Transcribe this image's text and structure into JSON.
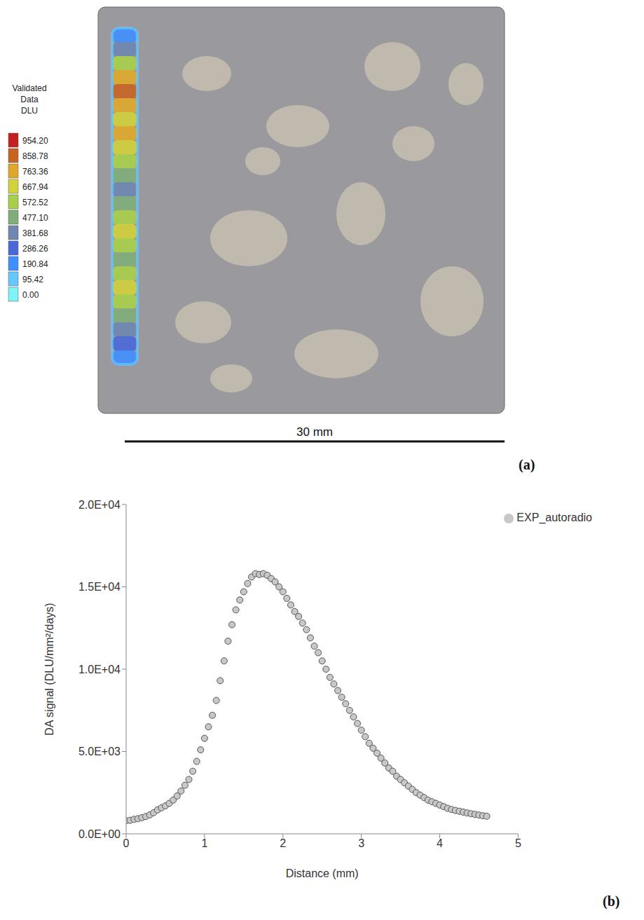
{
  "image_panel": {
    "label": "(a)",
    "scale_bar": "30 mm",
    "colorbar": {
      "title": "Validated Data DLU",
      "ticks": [
        {
          "value": 0,
          "label": "0.00"
        },
        {
          "value": 95.42,
          "label": "95.42"
        },
        {
          "value": 190.84,
          "label": "190.84"
        },
        {
          "value": 286.26,
          "label": "286.26"
        },
        {
          "value": 381.68,
          "label": "381.68"
        },
        {
          "value": 477.1,
          "label": "477.10"
        },
        {
          "value": 572.52,
          "label": "572.52"
        },
        {
          "value": 667.94,
          "label": "667.94"
        },
        {
          "value": 763.36,
          "label": "763.36"
        },
        {
          "value": 858.78,
          "label": "858.78"
        },
        {
          "value": 954.2,
          "label": "954.20"
        }
      ],
      "colors": [
        "#80f4f4",
        "#66c8ff",
        "#3f8fff",
        "#4a68d8",
        "#6f86b0",
        "#7fae7a",
        "#a8cf4a",
        "#d2d23a",
        "#e0a82a",
        "#c86422",
        "#c42020"
      ]
    }
  },
  "chart_data": {
    "type": "scatter",
    "panel_label": "(b)",
    "x_label": "Distance (mm)",
    "y_label": "DA signal (DLU/mm²/days)",
    "xlim": [
      0,
      5
    ],
    "xticks": [
      0,
      1,
      2,
      3,
      4,
      5
    ],
    "ylim": [
      0,
      20000
    ],
    "yticks": [
      {
        "value": 0,
        "label": "0.0E+00"
      },
      {
        "value": 5000,
        "label": "5.0E+03"
      },
      {
        "value": 10000,
        "label": "1.0E+04"
      },
      {
        "value": 15000,
        "label": "1.5E+04"
      },
      {
        "value": 20000,
        "label": "2.0E+04"
      }
    ],
    "legend": "top-right",
    "grid": false,
    "series": [
      {
        "name": "EXP_autoradio",
        "color": "#c8c8c8",
        "marker": "circle",
        "x": [
          0,
          0.05,
          0.1,
          0.15,
          0.2,
          0.25,
          0.3,
          0.35,
          0.4,
          0.45,
          0.5,
          0.55,
          0.6,
          0.65,
          0.7,
          0.75,
          0.8,
          0.85,
          0.9,
          0.95,
          1.0,
          1.05,
          1.1,
          1.15,
          1.2,
          1.25,
          1.3,
          1.35,
          1.4,
          1.45,
          1.5,
          1.55,
          1.6,
          1.65,
          1.7,
          1.75,
          1.8,
          1.85,
          1.9,
          1.95,
          2.0,
          2.05,
          2.1,
          2.15,
          2.2,
          2.25,
          2.3,
          2.35,
          2.4,
          2.45,
          2.5,
          2.55,
          2.6,
          2.65,
          2.7,
          2.75,
          2.8,
          2.85,
          2.9,
          2.95,
          3.0,
          3.05,
          3.1,
          3.15,
          3.2,
          3.25,
          3.3,
          3.35,
          3.4,
          3.45,
          3.5,
          3.55,
          3.6,
          3.65,
          3.7,
          3.75,
          3.8,
          3.85,
          3.9,
          3.95,
          4.0,
          4.05,
          4.1,
          4.15,
          4.2,
          4.25,
          4.3,
          4.35,
          4.4,
          4.45,
          4.5,
          4.55,
          4.6
        ],
        "values": [
          800,
          820,
          880,
          920,
          980,
          1050,
          1150,
          1280,
          1450,
          1580,
          1700,
          1850,
          2050,
          2300,
          2600,
          2950,
          3300,
          3800,
          4400,
          5100,
          5800,
          6500,
          7200,
          8100,
          9300,
          10500,
          11700,
          12700,
          13600,
          14200,
          14700,
          15200,
          15600,
          15800,
          15750,
          15800,
          15700,
          15500,
          15300,
          15000,
          14700,
          14300,
          13900,
          13500,
          13200,
          12800,
          12400,
          11900,
          11400,
          11000,
          10500,
          10000,
          9500,
          9100,
          8700,
          8300,
          7900,
          7500,
          7100,
          6700,
          6300,
          5900,
          5500,
          5200,
          4900,
          4600,
          4300,
          4000,
          3800,
          3500,
          3300,
          3100,
          2900,
          2700,
          2500,
          2350,
          2200,
          2050,
          1950,
          1850,
          1750,
          1650,
          1550,
          1480,
          1420,
          1370,
          1320,
          1270,
          1220,
          1180,
          1140,
          1100,
          1070
        ]
      }
    ]
  }
}
